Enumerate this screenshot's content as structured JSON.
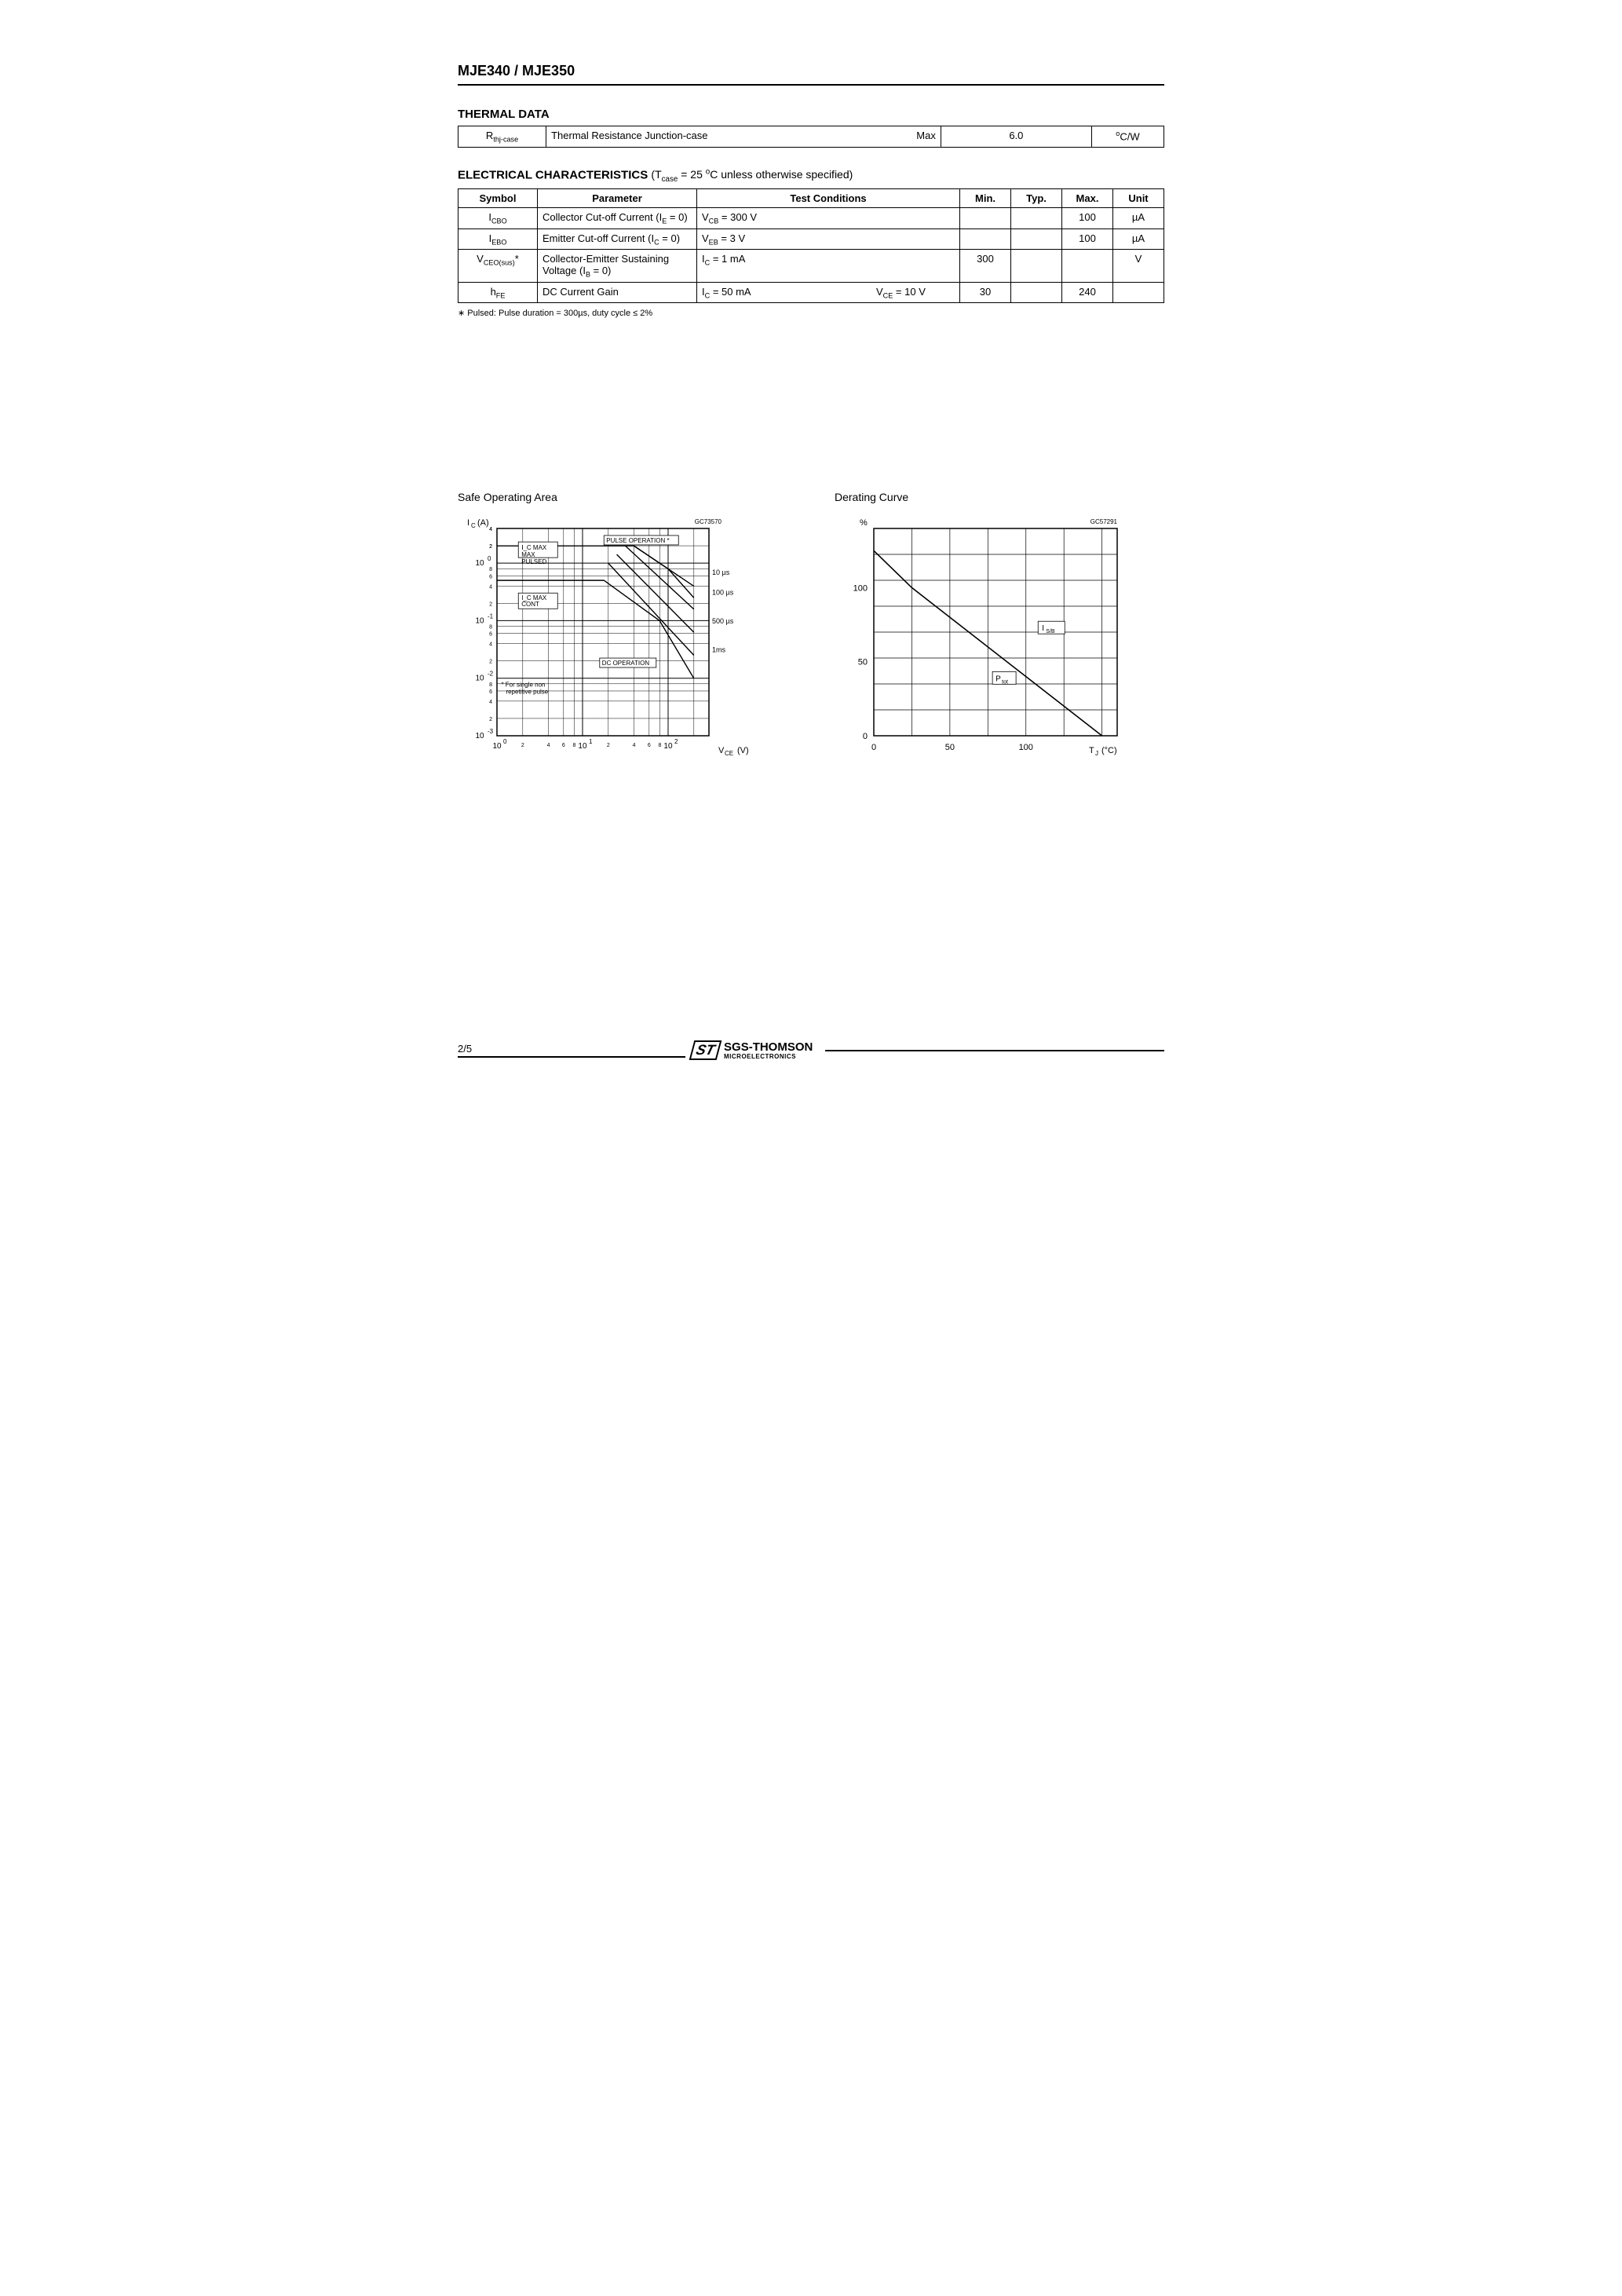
{
  "header": {
    "title": "MJE340 / MJE350"
  },
  "thermal": {
    "section_title": "THERMAL  DATA",
    "row": {
      "symbol_html": "R<sub>thj-case</sub>",
      "param": "Thermal Resistance  Junction-case",
      "type": "Max",
      "value": "6.0",
      "unit_html": "<sup>o</sup>C/W"
    }
  },
  "electrical": {
    "section_title": "ELECTRICAL  CHARACTERISTICS",
    "condition_html": "(T<sub>case</sub> = 25 <sup>o</sup>C unless otherwise specified)",
    "headers": {
      "symbol": "Symbol",
      "parameter": "Parameter",
      "test": "Test Conditions",
      "min": "Min.",
      "typ": "Typ.",
      "max": "Max.",
      "unit": "Unit"
    },
    "rows": [
      {
        "symbol_html": "I<sub>CBO</sub>",
        "param_html": "Collector Cut-off Current (I<sub>E</sub> = 0)",
        "cond_html": "V<sub>CB</sub> = 300 V",
        "cond2_html": "",
        "min": "",
        "typ": "",
        "max": "100",
        "unit": "µA"
      },
      {
        "symbol_html": "I<sub>EBO</sub>",
        "param_html": "Emitter Cut-off Current (I<sub>C</sub> = 0)",
        "cond_html": "V<sub>EB</sub> = 3 V",
        "cond2_html": "",
        "min": "",
        "typ": "",
        "max": "100",
        "unit": "µA"
      },
      {
        "symbol_html": "V<sub>CEO(sus)</sub>*",
        "param_html": "Collector-Emitter Sustaining Voltage (I<sub>B</sub> = 0)",
        "cond_html": "I<sub>C</sub> = 1 mA",
        "cond2_html": "",
        "min": "300",
        "typ": "",
        "max": "",
        "unit": "V"
      },
      {
        "symbol_html": "h<sub>FE</sub>",
        "param_html": "DC Current Gain",
        "cond_html": "I<sub>C</sub> = 50 mA",
        "cond2_html": "V<sub>CE</sub> = 10 V",
        "min": "30",
        "typ": "",
        "max": "240",
        "unit": ""
      }
    ],
    "footnote": "∗ Pulsed: Pulse duration = 300µs, duty cycle  ≤  2%"
  },
  "charts": {
    "soa": {
      "title": "Safe Operating Area",
      "type": "log-log-line",
      "code": "GC73570",
      "y_label": "I_C (A)",
      "x_label": "V_CE (V)",
      "x_decades": [
        1,
        10,
        100
      ],
      "y_decades": [
        0.001,
        0.01,
        0.1,
        1
      ],
      "y_extra_ticks": [
        "2",
        "4"
      ],
      "annotations": [
        "I_C MAX PULSED",
        "I_C MAX CONT",
        "PULSE OPERATION *",
        "DC OPERATION",
        "* For single non repetitive pulse"
      ],
      "curve_labels": [
        "10 µs",
        "100 µs",
        "500 µs",
        "1ms"
      ],
      "series": [
        {
          "name": "pulsed_top",
          "points_log": [
            [
              0,
              0.3
            ],
            [
              1.6,
              0.3
            ],
            [
              2.0,
              -0.1
            ],
            [
              2.3,
              -0.6
            ]
          ]
        },
        {
          "name": "cont_top",
          "points_log": [
            [
              0,
              -0.3
            ],
            [
              1.25,
              -0.3
            ],
            [
              1.9,
              -1.0
            ],
            [
              2.3,
              -2.0
            ]
          ]
        },
        {
          "name": "10us",
          "points_log": [
            [
              1.6,
              0.3
            ],
            [
              2.3,
              -0.4
            ]
          ]
        },
        {
          "name": "100us",
          "points_log": [
            [
              1.5,
              0.3
            ],
            [
              2.3,
              -0.8
            ]
          ]
        },
        {
          "name": "500us",
          "points_log": [
            [
              1.4,
              0.15
            ],
            [
              2.3,
              -1.2
            ]
          ]
        },
        {
          "name": "1ms",
          "points_log": [
            [
              1.3,
              0.0
            ],
            [
              2.3,
              -1.6
            ]
          ]
        }
      ],
      "colors": {
        "axes": "#000000",
        "grid": "#000000",
        "line": "#000000",
        "bg": "#ffffff"
      },
      "line_width": 1.4,
      "font_size_axis": 10,
      "font_size_label": 11
    },
    "derating": {
      "title": "Derating Curve",
      "type": "line",
      "code": "GC57291",
      "y_label": "%",
      "x_label": "T_J (°C)",
      "xlim": [
        0,
        160
      ],
      "ylim": [
        0,
        140
      ],
      "xticks": [
        0,
        50,
        100
      ],
      "yticks": [
        0,
        50,
        100
      ],
      "x_grid_step": 25,
      "y_grid_step_rows": 8,
      "annotations": [
        "I_S/B",
        "P_tot"
      ],
      "series": [
        {
          "name": "derate",
          "points": [
            [
              0,
              125
            ],
            [
              25,
              100
            ],
            [
              150,
              0
            ]
          ]
        }
      ],
      "colors": {
        "axes": "#000000",
        "grid": "#000000",
        "line": "#000000",
        "bg": "#ffffff"
      },
      "line_width": 1.6,
      "font_size_axis": 11,
      "font_size_label": 11
    }
  },
  "footer": {
    "page_no": "2/5",
    "logo_main": "SGS-THOMSON",
    "logo_sub": "MICROELECTRONICS",
    "logo_mark": "ST"
  }
}
